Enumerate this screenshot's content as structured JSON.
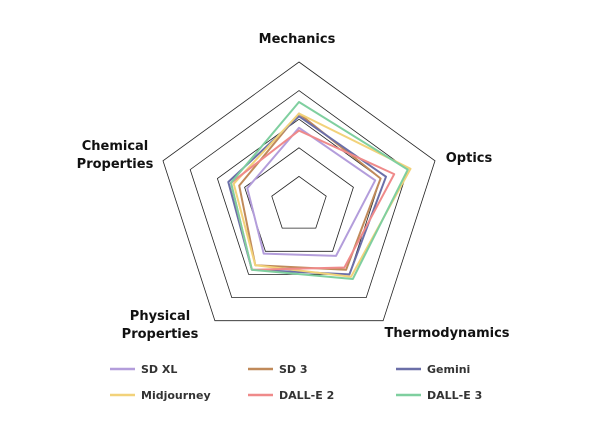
{
  "chart_data": {
    "type": "radar",
    "axes": [
      "Mechanics",
      "Optics",
      "Thermodynamics",
      "Physical Properties",
      "Chemical Properties"
    ],
    "axis_label_lines": [
      [
        "Mechanics"
      ],
      [
        "Optics"
      ],
      [
        "Thermodynamics"
      ],
      [
        "Physical",
        "Properties"
      ],
      [
        "Chemical",
        "Properties"
      ]
    ],
    "range": [
      0,
      5
    ],
    "rings": [
      1,
      2,
      3,
      4,
      5
    ],
    "legend_position": "bottom",
    "series": [
      {
        "name": "SD XL",
        "color": "#b39ddb",
        "values": [
          2.7,
          2.8,
          2.2,
          2.1,
          1.9
        ]
      },
      {
        "name": "SD 3",
        "color": "#c08a5a",
        "values": [
          3.2,
          3.0,
          2.8,
          2.6,
          2.2
        ]
      },
      {
        "name": "Gemini",
        "color": "#6b6fa8",
        "values": [
          3.1,
          3.2,
          3.0,
          2.8,
          2.6
        ]
      },
      {
        "name": "Midjourney",
        "color": "#f2d27a",
        "values": [
          3.2,
          4.1,
          3.1,
          2.6,
          2.4
        ]
      },
      {
        "name": "DALL-E 2",
        "color": "#ef8a8a",
        "values": [
          2.6,
          3.5,
          2.7,
          2.8,
          2.5
        ]
      },
      {
        "name": "DALL-E 3",
        "color": "#7fcf9f",
        "values": [
          3.6,
          4.0,
          3.2,
          2.8,
          2.5
        ]
      }
    ]
  }
}
